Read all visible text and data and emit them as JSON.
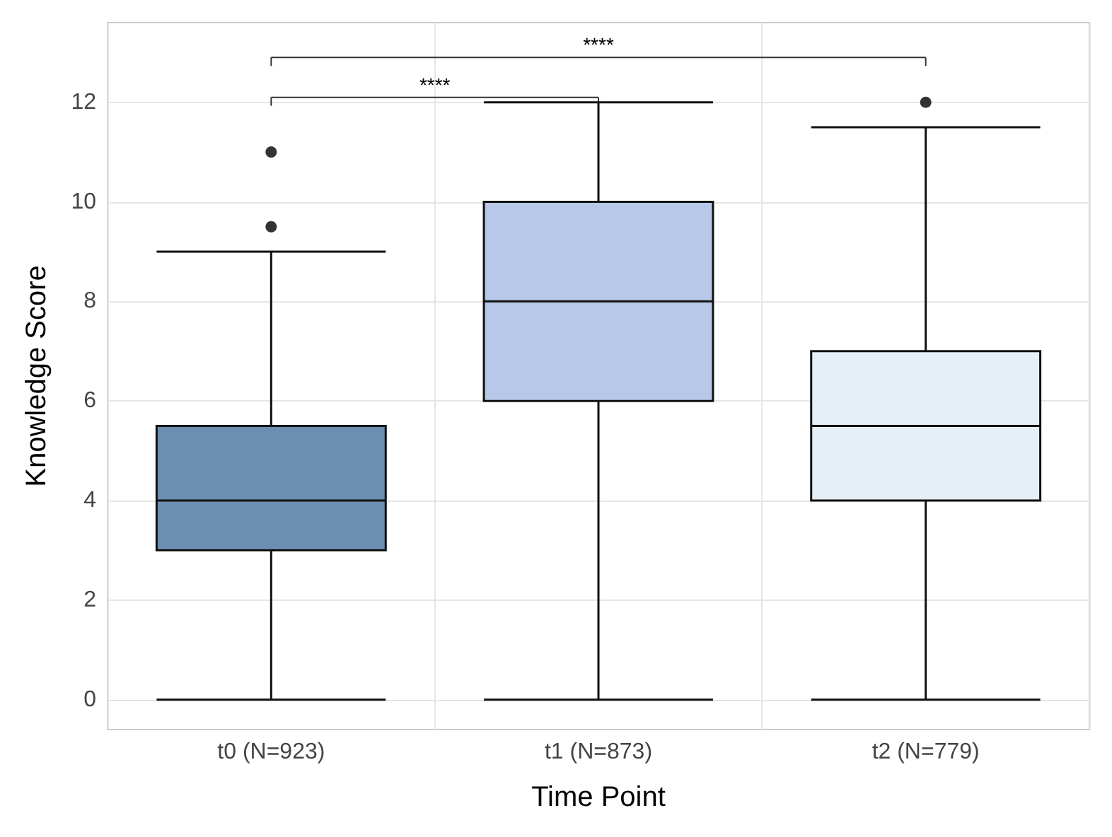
{
  "chart_data": {
    "type": "box",
    "xlabel": "Time Point",
    "ylabel": "Knowledge Score",
    "categories": [
      "t0 (N=923)",
      "t1 (N=873)",
      "t2 (N=779)"
    ],
    "boxes": [
      {
        "low": 0,
        "q1": 3,
        "median": 4,
        "q3": 5.5,
        "high": 9,
        "outliers": [
          9.5,
          11
        ]
      },
      {
        "low": 0,
        "q1": 6,
        "median": 8,
        "q3": 10,
        "high": 12
      },
      {
        "low": 0,
        "q1": 4,
        "median": 5.5,
        "q3": 7,
        "high": 11.5,
        "outliers": [
          12
        ]
      }
    ],
    "colors": [
      "#6a8fb0",
      "#b8c8e8",
      "#e6eef8"
    ],
    "ylim": [
      -0.6,
      13.6
    ],
    "yticks": [
      0,
      2,
      4,
      6,
      8,
      10,
      12
    ],
    "grid": true,
    "annotations": [
      "****",
      "****"
    ]
  }
}
